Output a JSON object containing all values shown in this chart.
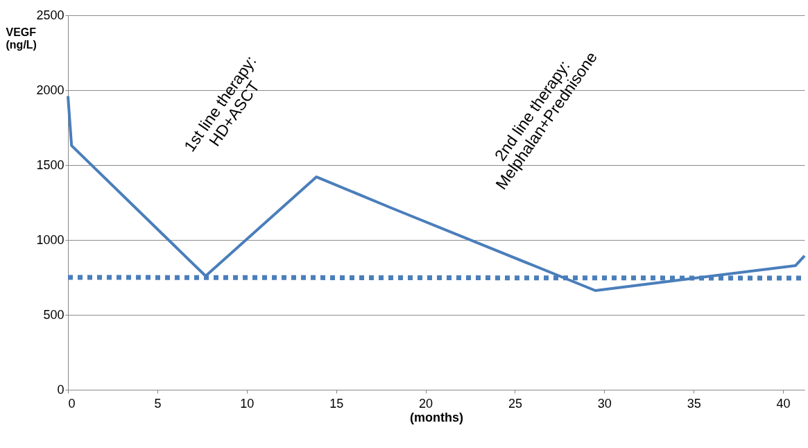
{
  "chart_data": {
    "type": "line",
    "xlabel": "(months)",
    "ylabel": "VEGF\n(ng/L)",
    "xlim": [
      0,
      41.2
    ],
    "xticks": [
      0,
      5,
      10,
      15,
      20,
      25,
      30,
      35,
      40
    ],
    "ylim": [
      0,
      2500
    ],
    "yticks": [
      0,
      500,
      1000,
      1500,
      2000,
      2500
    ],
    "grid": "y",
    "series": [
      {
        "color": "#4a7ebb",
        "line_style": "solid",
        "x": [
          0,
          0.2,
          7.7,
          13.9,
          18.1,
          29.5,
          40.7,
          41.2
        ],
        "values": [
          1960,
          1630,
          759,
          1421,
          1213,
          662,
          829,
          894
        ]
      },
      {
        "color": "#4a7ebb",
        "line_style": "dotted",
        "x": [
          0,
          41.2
        ],
        "values": [
          750,
          745
        ]
      }
    ],
    "annotations": [
      "1st  line therapy:\nHD+ASCT",
      "2nd  line therapy:\nMelphalan+Prednisone"
    ]
  }
}
